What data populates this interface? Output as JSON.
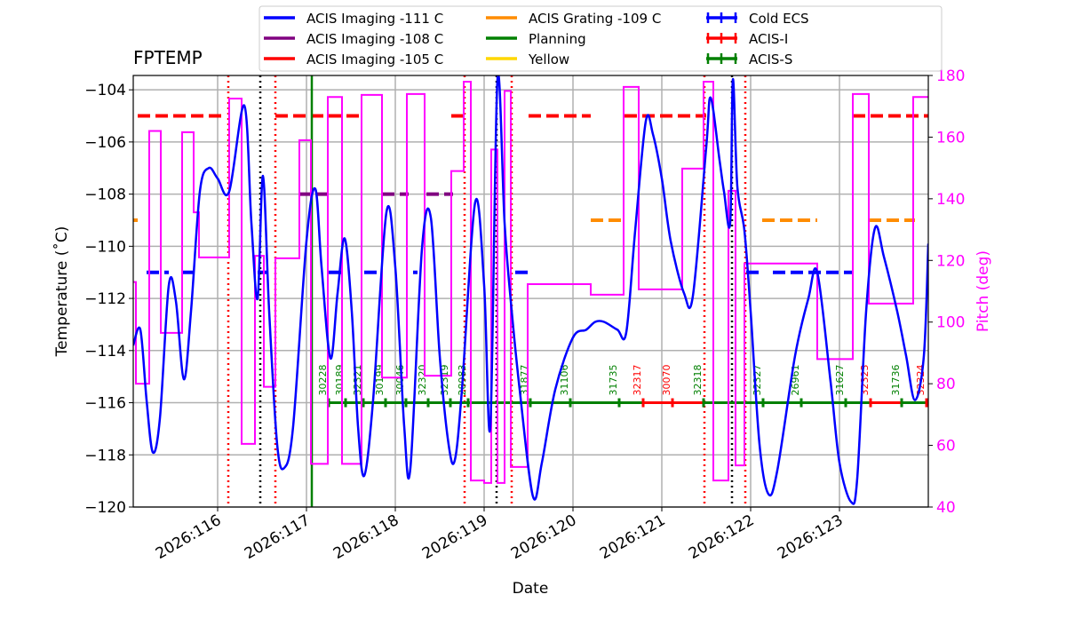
{
  "chart_data": {
    "type": "line",
    "title": "FPTEMP",
    "xlabel": "Date",
    "ylabel": "Temperature ($^\\circ$C)",
    "ylabel_display": "Temperature (˚C)",
    "y2label": "Pitch (deg)",
    "xlim": [
      115.05,
      124.0
    ],
    "ylim": [
      -120,
      -103.45
    ],
    "y2lim": [
      40,
      180
    ],
    "grid": true,
    "legend_position": "top (above plot)",
    "xticks": [
      {
        "v": 116,
        "label": "2026:116"
      },
      {
        "v": 117,
        "label": "2026:117"
      },
      {
        "v": 118,
        "label": "2026:118"
      },
      {
        "v": 119,
        "label": "2026:119"
      },
      {
        "v": 120,
        "label": "2026:120"
      },
      {
        "v": 121,
        "label": "2026:121"
      },
      {
        "v": 122,
        "label": "2026:122"
      },
      {
        "v": 123,
        "label": "2026:123"
      }
    ],
    "yticks": [
      -120,
      -118,
      -116,
      -114,
      -112,
      -110,
      -108,
      -106,
      -104
    ],
    "y2ticks": [
      40,
      60,
      80,
      100,
      120,
      140,
      160,
      180
    ],
    "colors": {
      "temp": "#0000ff",
      "pitch": "#ff00ff",
      "acis_i": "#ff0000",
      "acis_s": "#008000",
      "black": "#000000"
    },
    "legend": [
      {
        "label": "ACIS Imaging -111 C",
        "color": "#0000ff",
        "style": "line"
      },
      {
        "label": "ACIS Imaging -108 C",
        "color": "#800080",
        "style": "line"
      },
      {
        "label": "ACIS Imaging -105 C",
        "color": "#ff0000",
        "style": "line"
      },
      {
        "label": "ACIS Grating -109 C",
        "color": "#ff8c00",
        "style": "line"
      },
      {
        "label": "Planning",
        "color": "#008000",
        "style": "line"
      },
      {
        "label": "Yellow",
        "color": "#ffd700",
        "style": "line"
      },
      {
        "label": "Cold ECS",
        "color": "#0000ff",
        "style": "errbar"
      },
      {
        "label": "ACIS-I",
        "color": "#ff0000",
        "style": "errbar"
      },
      {
        "label": "ACIS-S",
        "color": "#008000",
        "style": "errbar"
      }
    ],
    "limits": [
      {
        "value": -105,
        "color": "#ff0000",
        "ranges": [
          [
            115.1,
            116.1
          ],
          [
            116.65,
            117.65
          ],
          [
            118.63,
            118.8
          ],
          [
            119.5,
            120.2
          ],
          [
            120.58,
            121.5
          ],
          [
            123.15,
            124.0
          ]
        ]
      },
      {
        "value": -111,
        "color": "#0000ff",
        "ranges": [
          [
            115.2,
            115.45
          ],
          [
            115.6,
            115.75
          ],
          [
            116.45,
            116.55
          ],
          [
            117.25,
            117.4
          ],
          [
            117.65,
            117.85
          ],
          [
            118.2,
            118.25
          ],
          [
            119.35,
            119.5
          ],
          [
            121.95,
            122.15
          ],
          [
            122.25,
            123.15
          ]
        ]
      },
      {
        "value": -108,
        "color": "#800080",
        "ranges": [
          [
            116.92,
            117.25
          ],
          [
            117.85,
            118.15
          ],
          [
            118.35,
            118.65
          ]
        ]
      },
      {
        "value": -109,
        "color": "#ff8c00",
        "ranges": [
          [
            115.05,
            115.1
          ],
          [
            120.2,
            120.55
          ],
          [
            122.13,
            122.75
          ],
          [
            123.33,
            123.85
          ]
        ]
      }
    ],
    "vlines": [
      {
        "x": 116.12,
        "color": "#ff0000",
        "style": "dotted"
      },
      {
        "x": 116.65,
        "color": "#ff0000",
        "style": "dotted"
      },
      {
        "x": 118.78,
        "color": "#ff0000",
        "style": "dotted"
      },
      {
        "x": 119.31,
        "color": "#ff0000",
        "style": "dotted"
      },
      {
        "x": 121.48,
        "color": "#ff0000",
        "style": "dotted"
      },
      {
        "x": 121.94,
        "color": "#ff0000",
        "style": "dotted"
      },
      {
        "x": 116.48,
        "color": "#000000",
        "style": "dotted"
      },
      {
        "x": 119.14,
        "color": "#000000",
        "style": "dotted"
      },
      {
        "x": 121.79,
        "color": "#000000",
        "style": "dotted"
      },
      {
        "x": 117.06,
        "color": "#008000",
        "style": "solid"
      }
    ],
    "temperature": [
      [
        115.05,
        -113.8
      ],
      [
        115.13,
        -113.2
      ],
      [
        115.2,
        -115.9
      ],
      [
        115.27,
        -117.9
      ],
      [
        115.35,
        -116.6
      ],
      [
        115.45,
        -111.5
      ],
      [
        115.53,
        -112.1
      ],
      [
        115.62,
        -115.1
      ],
      [
        115.7,
        -112.5
      ],
      [
        115.8,
        -107.9
      ],
      [
        115.9,
        -107.0
      ],
      [
        116.0,
        -107.4
      ],
      [
        116.13,
        -107.9
      ],
      [
        116.3,
        -104.6
      ],
      [
        116.38,
        -109.1
      ],
      [
        116.45,
        -112.0
      ],
      [
        116.51,
        -107.3
      ],
      [
        116.58,
        -112.5
      ],
      [
        116.67,
        -117.6
      ],
      [
        116.75,
        -118.5
      ],
      [
        116.85,
        -116.9
      ],
      [
        117.0,
        -109.8
      ],
      [
        117.1,
        -107.8
      ],
      [
        117.17,
        -110.8
      ],
      [
        117.27,
        -114.3
      ],
      [
        117.35,
        -111.8
      ],
      [
        117.43,
        -109.7
      ],
      [
        117.51,
        -112.5
      ],
      [
        117.58,
        -116.9
      ],
      [
        117.65,
        -118.8
      ],
      [
        117.75,
        -115.9
      ],
      [
        117.9,
        -108.7
      ],
      [
        118.0,
        -110.8
      ],
      [
        118.1,
        -116.9
      ],
      [
        118.17,
        -118.5
      ],
      [
        118.3,
        -110.1
      ],
      [
        118.4,
        -108.9
      ],
      [
        118.5,
        -114.2
      ],
      [
        118.6,
        -117.6
      ],
      [
        118.67,
        -118.2
      ],
      [
        118.75,
        -115.5
      ],
      [
        118.9,
        -108.3
      ],
      [
        119.0,
        -111.5
      ],
      [
        119.07,
        -116.9
      ],
      [
        119.15,
        -103.6
      ],
      [
        119.23,
        -109.1
      ],
      [
        119.3,
        -112.1
      ],
      [
        119.4,
        -115.5
      ],
      [
        119.55,
        -119.6
      ],
      [
        119.65,
        -118.3
      ],
      [
        119.8,
        -115.5
      ],
      [
        120.0,
        -113.5
      ],
      [
        120.15,
        -113.2
      ],
      [
        120.25,
        -112.9
      ],
      [
        120.35,
        -112.9
      ],
      [
        120.5,
        -113.2
      ],
      [
        120.6,
        -113.3
      ],
      [
        120.7,
        -109.4
      ],
      [
        120.82,
        -105.2
      ],
      [
        120.9,
        -105.7
      ],
      [
        121.0,
        -107.4
      ],
      [
        121.1,
        -109.8
      ],
      [
        121.25,
        -111.8
      ],
      [
        121.35,
        -111.9
      ],
      [
        121.5,
        -106.2
      ],
      [
        121.55,
        -104.3
      ],
      [
        121.65,
        -106.7
      ],
      [
        121.7,
        -107.9
      ],
      [
        121.77,
        -109.1
      ],
      [
        121.8,
        -103.6
      ],
      [
        121.85,
        -107.7
      ],
      [
        121.93,
        -109.4
      ],
      [
        122.0,
        -112.5
      ],
      [
        122.1,
        -117.6
      ],
      [
        122.2,
        -119.5
      ],
      [
        122.3,
        -118.6
      ],
      [
        122.5,
        -114.2
      ],
      [
        122.65,
        -112.0
      ],
      [
        122.75,
        -111.0
      ],
      [
        122.9,
        -115.2
      ],
      [
        123.0,
        -118.3
      ],
      [
        123.13,
        -119.8
      ],
      [
        123.2,
        -118.9
      ],
      [
        123.3,
        -112.5
      ],
      [
        123.4,
        -109.3
      ],
      [
        123.5,
        -110.4
      ],
      [
        123.65,
        -112.5
      ],
      [
        123.75,
        -114.2
      ],
      [
        123.85,
        -115.9
      ],
      [
        123.95,
        -114.2
      ],
      [
        124.0,
        -109.9
      ]
    ],
    "pitch_steps": [
      [
        115.05,
        113
      ],
      [
        115.08,
        80
      ],
      [
        115.23,
        162
      ],
      [
        115.36,
        96.5
      ],
      [
        115.6,
        161.6
      ],
      [
        115.73,
        135.6
      ],
      [
        115.79,
        121
      ],
      [
        116.13,
        172.5
      ],
      [
        116.27,
        60.5
      ],
      [
        116.42,
        121.5
      ],
      [
        116.52,
        79
      ],
      [
        116.65,
        120.7
      ],
      [
        116.92,
        159
      ],
      [
        117.05,
        54
      ],
      [
        117.24,
        173
      ],
      [
        117.4,
        54
      ],
      [
        117.62,
        173.7
      ],
      [
        117.85,
        82
      ],
      [
        118.13,
        174
      ],
      [
        118.33,
        82.6
      ],
      [
        118.63,
        149
      ],
      [
        118.77,
        178
      ],
      [
        118.85,
        48.6
      ],
      [
        119.0,
        47.8
      ],
      [
        119.08,
        156
      ],
      [
        119.15,
        47.8
      ],
      [
        119.23,
        175
      ],
      [
        119.3,
        53
      ],
      [
        119.49,
        112.3
      ],
      [
        120.2,
        108.9
      ],
      [
        120.57,
        176.3
      ],
      [
        120.74,
        110.6
      ],
      [
        121.23,
        149.8
      ],
      [
        121.47,
        178
      ],
      [
        121.58,
        48.6
      ],
      [
        121.75,
        142.6
      ],
      [
        121.83,
        53.5
      ],
      [
        121.93,
        119
      ],
      [
        122.75,
        88
      ],
      [
        123.15,
        174
      ],
      [
        123.33,
        106
      ],
      [
        123.83,
        173
      ]
    ],
    "obsids": {
      "y": -116,
      "items": [
        {
          "id": "30228",
          "start": 117.25,
          "instrument": "ACIS-S"
        },
        {
          "id": "30189",
          "start": 117.44,
          "instrument": "ACIS-S"
        },
        {
          "id": "32321",
          "start": 117.64,
          "instrument": "ACIS-S"
        },
        {
          "id": "30199",
          "start": 117.89,
          "instrument": "ACIS-S"
        },
        {
          "id": "30046",
          "start": 118.12,
          "instrument": "ACIS-S"
        },
        {
          "id": "32320",
          "start": 118.37,
          "instrument": "ACIS-S"
        },
        {
          "id": "32319",
          "start": 118.62,
          "instrument": "ACIS-S"
        },
        {
          "id": "28983",
          "start": 118.82,
          "instrument": "ACIS-S"
        },
        {
          "id": "31877",
          "start": 119.52,
          "instrument": "ACIS-S"
        },
        {
          "id": "31106",
          "start": 119.97,
          "instrument": "ACIS-S"
        },
        {
          "id": "31735",
          "start": 120.52,
          "instrument": "ACIS-S"
        },
        {
          "id": "32317",
          "start": 120.79,
          "instrument": "ACIS-I"
        },
        {
          "id": "30070",
          "start": 121.12,
          "instrument": "ACIS-I"
        },
        {
          "id": "32318",
          "start": 121.47,
          "instrument": "ACIS-S"
        },
        {
          "id": "32327",
          "start": 122.14,
          "instrument": "ACIS-S"
        },
        {
          "id": "26961",
          "start": 122.57,
          "instrument": "ACIS-S"
        },
        {
          "id": "31627",
          "start": 123.07,
          "instrument": "ACIS-S"
        },
        {
          "id": "32323",
          "start": 123.35,
          "instrument": "ACIS-I"
        },
        {
          "id": "31736",
          "start": 123.7,
          "instrument": "ACIS-S"
        },
        {
          "id": "32324",
          "start": 123.98,
          "instrument": "ACIS-I"
        }
      ]
    }
  }
}
